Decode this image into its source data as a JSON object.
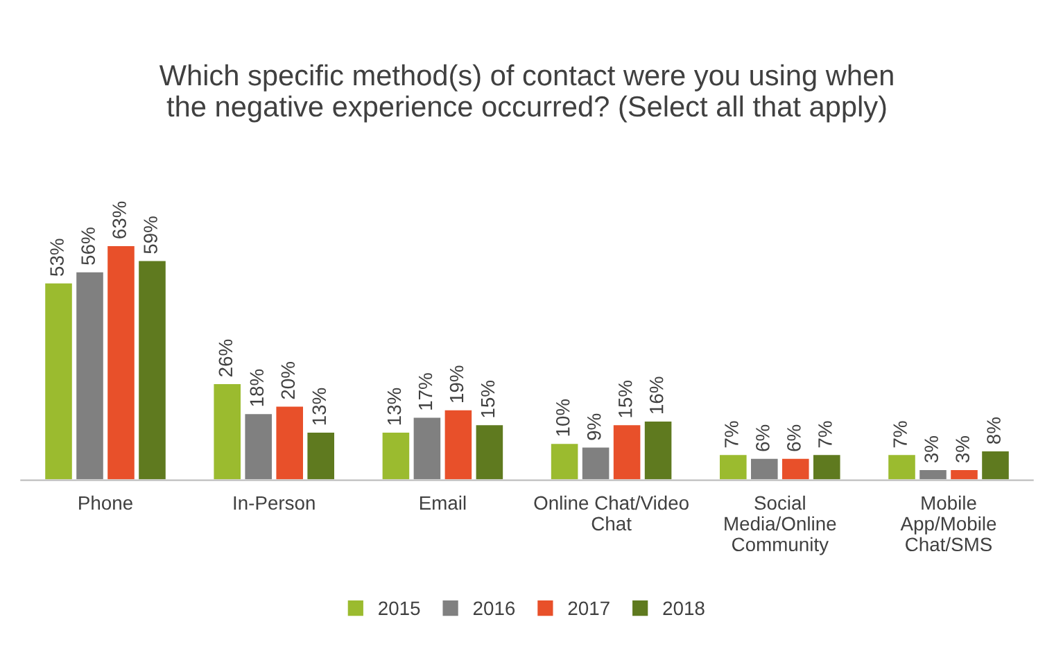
{
  "chart_data": {
    "type": "bar",
    "title": "Which specific method(s) of contact were you using when\nthe negative experience occurred? (Select all that apply)",
    "categories": [
      "Phone",
      "In-Person",
      "Email",
      "Online Chat/Video\nChat",
      "Social\nMedia/Online\nCommunity",
      "Mobile\nApp/Mobile\nChat/SMS"
    ],
    "series": [
      {
        "name": "2015",
        "color": "#9bbb2f",
        "values": [
          53,
          26,
          13,
          10,
          7,
          7
        ],
        "value_labels": [
          "53%",
          "26%",
          "13%",
          "10%",
          "7%",
          "7%"
        ]
      },
      {
        "name": "2016",
        "color": "#808080",
        "values": [
          56,
          18,
          17,
          9,
          6,
          3
        ],
        "value_labels": [
          "56%",
          "18%",
          "17%",
          "9%",
          "6%",
          "3%"
        ]
      },
      {
        "name": "2017",
        "color": "#e8502a",
        "values": [
          63,
          20,
          19,
          15,
          6,
          3
        ],
        "value_labels": [
          "63%",
          "20%",
          "19%",
          "15%",
          "6%",
          "3%"
        ]
      },
      {
        "name": "2018",
        "color": "#5f7a1f",
        "values": [
          59,
          13,
          15,
          16,
          7,
          8
        ],
        "value_labels": [
          "59%",
          "13%",
          "15%",
          "16%",
          "7%",
          "8%"
        ]
      }
    ],
    "legend": "bottom",
    "grid": false
  }
}
